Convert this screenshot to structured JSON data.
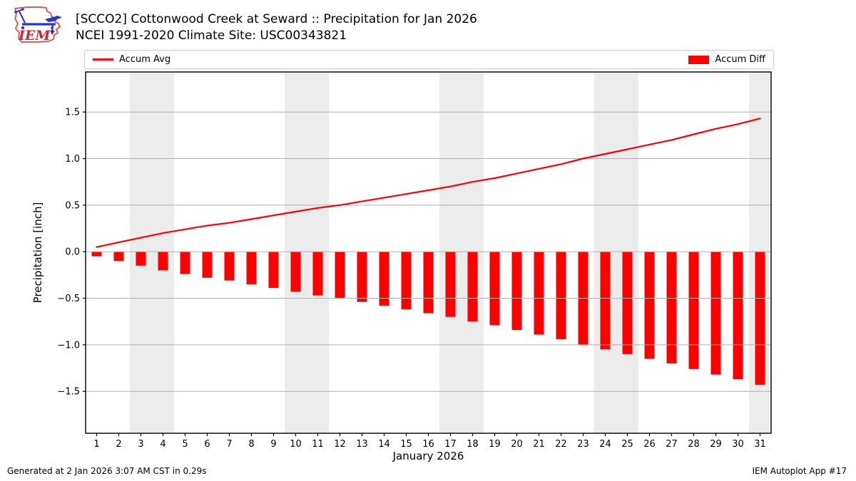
{
  "header": {
    "title_line1": "[SCCO2] Cottonwood Creek at Seward :: Precipitation for Jan 2026",
    "title_line2": "NCEI 1991-2020 Climate Site: USC00343821",
    "logo_text": "IEM"
  },
  "legend": {
    "avg_label": "Accum Avg",
    "diff_label": "Accum Diff",
    "color": "#ff0000"
  },
  "footer": {
    "generated": "Generated at 2 Jan 2026 3:07 AM CST in 0.29s",
    "app": "IEM Autoplot App #17"
  },
  "chart_data": {
    "type": "bar+line",
    "title": "[SCCO2] Cottonwood Creek at Seward :: Precipitation for Jan 2026",
    "subtitle": "NCEI 1991-2020 Climate Site: USC00343821",
    "xlabel": "January 2026",
    "ylabel": "Precipitation [inch]",
    "x": [
      1,
      2,
      3,
      4,
      5,
      6,
      7,
      8,
      9,
      10,
      11,
      12,
      13,
      14,
      15,
      16,
      17,
      18,
      19,
      20,
      21,
      22,
      23,
      24,
      25,
      26,
      27,
      28,
      29,
      30,
      31
    ],
    "xticks": [
      1,
      2,
      3,
      4,
      5,
      6,
      7,
      8,
      9,
      10,
      11,
      12,
      13,
      14,
      15,
      16,
      17,
      18,
      19,
      20,
      21,
      22,
      23,
      24,
      25,
      26,
      27,
      28,
      29,
      30,
      31
    ],
    "yticks": [
      -1.5,
      -1.0,
      -0.5,
      0.0,
      0.5,
      1.0,
      1.5
    ],
    "xlim": [
      0.5,
      31.5
    ],
    "ylim": [
      -1.95,
      1.93
    ],
    "grid": true,
    "legend_position": "top, full-width, avg left / diff right",
    "series": [
      {
        "name": "Accum Avg",
        "type": "line",
        "color": "#ff0000",
        "values": [
          0.05,
          0.1,
          0.15,
          0.2,
          0.24,
          0.28,
          0.31,
          0.35,
          0.39,
          0.43,
          0.47,
          0.5,
          0.54,
          0.58,
          0.62,
          0.66,
          0.7,
          0.75,
          0.79,
          0.84,
          0.89,
          0.94,
          1.0,
          1.05,
          1.1,
          1.15,
          1.2,
          1.26,
          1.32,
          1.37,
          1.43
        ]
      },
      {
        "name": "Accum Diff",
        "type": "bar",
        "color": "#ff0000",
        "values": [
          -0.05,
          -0.1,
          -0.15,
          -0.2,
          -0.24,
          -0.28,
          -0.31,
          -0.35,
          -0.39,
          -0.43,
          -0.47,
          -0.5,
          -0.54,
          -0.58,
          -0.62,
          -0.66,
          -0.7,
          -0.75,
          -0.79,
          -0.84,
          -0.89,
          -0.94,
          -1.0,
          -1.05,
          -1.1,
          -1.15,
          -1.2,
          -1.26,
          -1.32,
          -1.37,
          -1.43
        ]
      }
    ],
    "weekend_bands": [
      [
        2.5,
        4.5
      ],
      [
        9.5,
        11.5
      ],
      [
        16.5,
        18.5
      ],
      [
        23.5,
        25.5
      ],
      [
        30.5,
        31.5
      ]
    ],
    "band_color": "#ececec",
    "grid_color": "#b0b0b0"
  }
}
